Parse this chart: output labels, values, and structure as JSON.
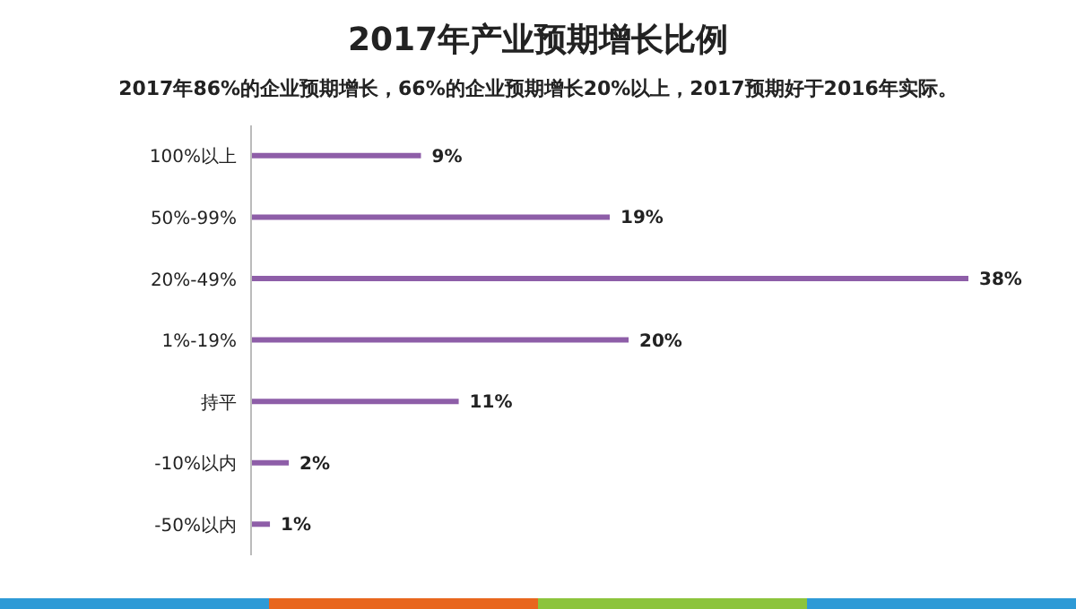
{
  "chart_data": {
    "type": "bar",
    "orientation": "horizontal",
    "title": "2017年产业预期增长比例",
    "subtitle": "2017年86%的企业预期增长，66%的企业预期增长20%以上，2017预期好于2016年实际。",
    "categories": [
      "100%以上",
      "50%-99%",
      "20%-49%",
      "1%-19%",
      "持平",
      "-10%以内",
      "-50%以内"
    ],
    "values": [
      9,
      19,
      38,
      20,
      11,
      2,
      1
    ],
    "value_labels": [
      "9%",
      "19%",
      "38%",
      "20%",
      "11%",
      "2%",
      "1%"
    ],
    "color": "#8e5ea8"
  }
}
